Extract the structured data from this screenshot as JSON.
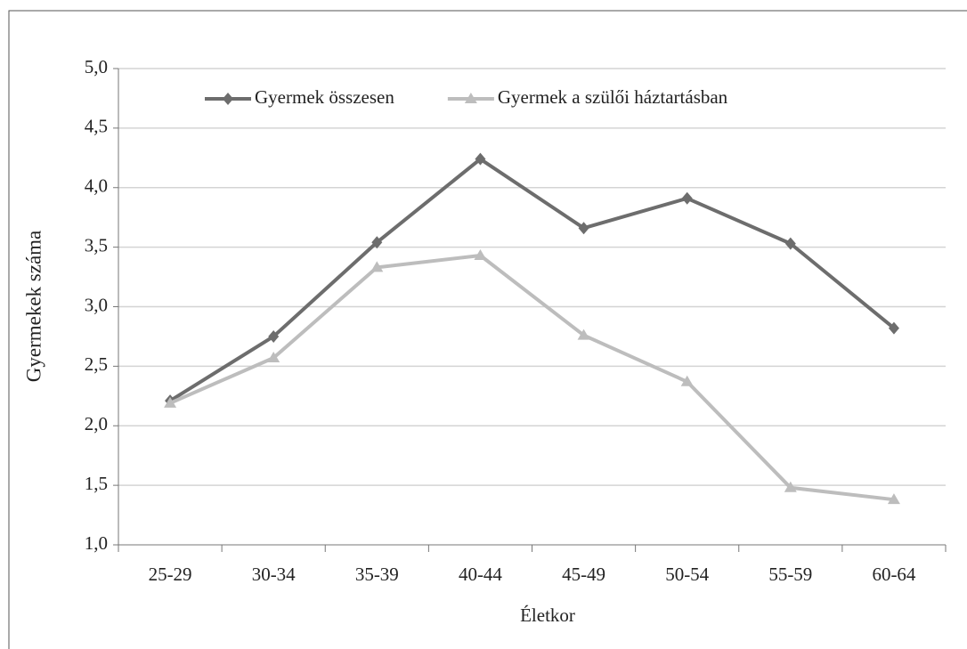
{
  "chart_data": {
    "type": "line",
    "x_label": "Életkor",
    "y_label": "Gyermekek száma",
    "categories": [
      "25-29",
      "30-34",
      "35-39",
      "40-44",
      "45-49",
      "50-54",
      "55-59",
      "60-64"
    ],
    "series": [
      {
        "name": "Gyermek összesen",
        "color": "#6d6d6d",
        "marker": "diamond",
        "values": [
          2.21,
          2.75,
          3.54,
          4.24,
          3.66,
          3.91,
          3.53,
          2.82
        ]
      },
      {
        "name": "Gyermek a szülői háztartásban",
        "color": "#bdbdbd",
        "marker": "triangle",
        "values": [
          2.19,
          2.57,
          3.33,
          3.43,
          2.76,
          2.37,
          1.48,
          1.38
        ]
      }
    ],
    "ylim": [
      1,
      5
    ],
    "yticks": [
      {
        "value": 1,
        "label": "1,0"
      },
      {
        "value": 1.5,
        "label": "1,5"
      },
      {
        "value": 2,
        "label": "2,0"
      },
      {
        "value": 2.5,
        "label": "2,5"
      },
      {
        "value": 3,
        "label": "3,0"
      },
      {
        "value": 3.5,
        "label": "3,5"
      },
      {
        "value": 4,
        "label": "4,0"
      },
      {
        "value": 4.5,
        "label": "4,5"
      },
      {
        "value": 5,
        "label": "5,0"
      }
    ],
    "grid": true,
    "legend": "top"
  }
}
